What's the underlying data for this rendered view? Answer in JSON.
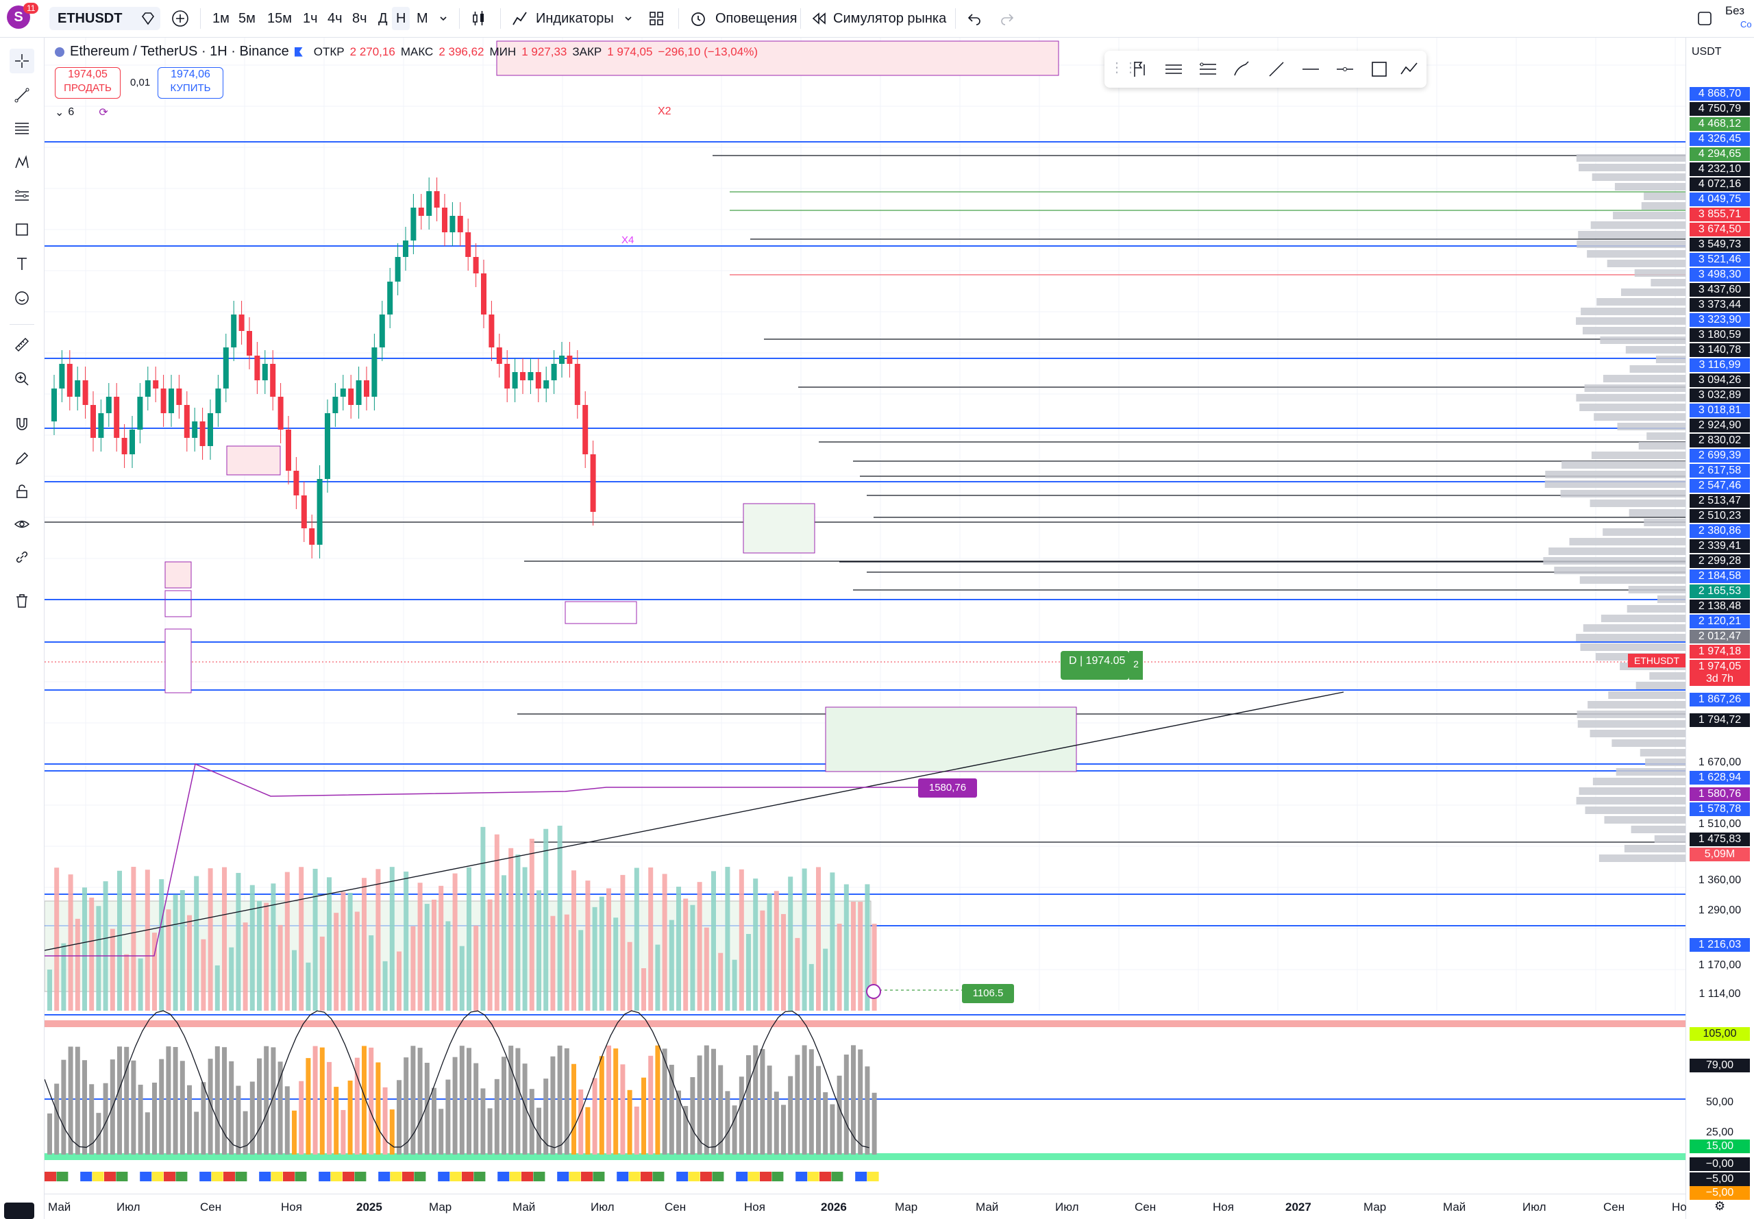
{
  "topbar": {
    "avatar_letter": "S",
    "notif_count": "11",
    "symbol": "ETHUSDT",
    "intervals": [
      "1м",
      "5м",
      "15м",
      "1ч",
      "4ч",
      "8ч",
      "Д",
      "Н",
      "М"
    ],
    "indicators_label": "Индикаторы",
    "alerts_label": "Оповещения",
    "replay_label": "Симулятор рынка",
    "layout_name": "Без",
    "layout_sub": "Со"
  },
  "legend": {
    "title": "Ethereum / TetherUS · 1H · Binance",
    "open_label": "ОТКР",
    "open": "2 270,16",
    "high_label": "МАКС",
    "high": "2 396,62",
    "low_label": "МИН",
    "low": "1 927,33",
    "close_label": "ЗАКР",
    "close": "1 974,05",
    "change": "−296,10 (−13,04%)"
  },
  "trade": {
    "sell_price": "1974,05",
    "sell_label": "ПРОДАТЬ",
    "spread": "0,01",
    "buy_price": "1974,06",
    "buy_label": "КУПИТЬ",
    "indicators_count": "6"
  },
  "currency": "USDT",
  "chart_labels": {
    "x2": "X2",
    "x4": "X4",
    "order_label": "D | 1974.05",
    "order_count": "2",
    "poc_label": "1580,76",
    "target_label": "1106.5"
  },
  "price_labels": [
    {
      "text": "4 868,70",
      "bg": "#2962ff"
    },
    {
      "text": "4 750,79",
      "bg": "#131722"
    },
    {
      "text": "4 468,12",
      "bg": "#43a047"
    },
    {
      "text": "4 326,45",
      "bg": "#2962ff"
    },
    {
      "text": "4 294,65",
      "bg": "#43a047"
    },
    {
      "text": "4 232,10",
      "bg": "#131722"
    },
    {
      "text": "4 072,16",
      "bg": "#131722"
    },
    {
      "text": "4 049,75",
      "bg": "#2962ff"
    },
    {
      "text": "3 855,71",
      "bg": "#f23645"
    },
    {
      "text": "3 674,50",
      "bg": "#f23645"
    },
    {
      "text": "3 549,73",
      "bg": "#131722"
    },
    {
      "text": "3 521,46",
      "bg": "#2962ff"
    },
    {
      "text": "3 498,30",
      "bg": "#2962ff"
    },
    {
      "text": "3 437,60",
      "bg": "#131722"
    },
    {
      "text": "3 373,44",
      "bg": "#131722"
    },
    {
      "text": "3 323,90",
      "bg": "#2962ff"
    },
    {
      "text": "3 180,59",
      "bg": "#131722"
    },
    {
      "text": "3 140,78",
      "bg": "#131722"
    },
    {
      "text": "3 116,99",
      "bg": "#2962ff"
    },
    {
      "text": "3 094,26",
      "bg": "#131722"
    },
    {
      "text": "3 032,89",
      "bg": "#131722"
    },
    {
      "text": "3 018,81",
      "bg": "#2962ff"
    },
    {
      "text": "2 924,90",
      "bg": "#131722"
    },
    {
      "text": "2 830,02",
      "bg": "#131722"
    },
    {
      "text": "2 699,39",
      "bg": "#2962ff"
    },
    {
      "text": "2 617,58",
      "bg": "#2962ff"
    },
    {
      "text": "2 547,46",
      "bg": "#2962ff"
    },
    {
      "text": "2 513,47",
      "bg": "#131722"
    },
    {
      "text": "2 510,23",
      "bg": "#131722"
    },
    {
      "text": "2 380,86",
      "bg": "#2962ff"
    },
    {
      "text": "2 339,41",
      "bg": "#131722"
    },
    {
      "text": "2 299,28",
      "bg": "#131722"
    },
    {
      "text": "2 184,58",
      "bg": "#2962ff"
    },
    {
      "text": "2 165,53",
      "bg": "#089981"
    },
    {
      "text": "2 138,48",
      "bg": "#131722"
    },
    {
      "text": "2 120,21",
      "bg": "#2962ff"
    },
    {
      "text": "2 012,47",
      "bg": "#787b86"
    },
    {
      "text": "1 974,18",
      "bg": "#f23645"
    },
    {
      "text": "1 974,05",
      "bg": "#f23645"
    },
    {
      "text": "3d 7h",
      "bg": "#f23645"
    },
    {
      "text": "1 867,26",
      "bg": "#2962ff"
    },
    {
      "text": "1 794,72",
      "bg": "#131722"
    },
    {
      "text": "1 670,00",
      "bg": "plain"
    },
    {
      "text": "1 628,94",
      "bg": "#2962ff"
    },
    {
      "text": "1 580,76",
      "bg": "#9c27b0"
    },
    {
      "text": "1 578,78",
      "bg": "#2962ff"
    },
    {
      "text": "1 510,00",
      "bg": "plain"
    },
    {
      "text": "1 475,83",
      "bg": "#131722"
    },
    {
      "text": "5,09M",
      "bg": "#f7525f"
    },
    {
      "text": "1 360,00",
      "bg": "plain"
    },
    {
      "text": "1 290,00",
      "bg": "plain"
    },
    {
      "text": "1 216,03",
      "bg": "#2962ff"
    },
    {
      "text": "1 170,00",
      "bg": "plain"
    },
    {
      "text": "1 114,00",
      "bg": "plain"
    },
    {
      "text": "105,00",
      "bg": "#c6ff00"
    },
    {
      "text": "79,00",
      "bg": "#131722"
    },
    {
      "text": "50,00",
      "bg": "plain"
    },
    {
      "text": "25,00",
      "bg": "plain"
    },
    {
      "text": "15,00",
      "bg": "#00c853"
    },
    {
      "text": "−0,00",
      "bg": "#131722"
    },
    {
      "text": "−5,00",
      "bg": "#131722"
    },
    {
      "text": "−5,00",
      "bg": "#ff9800"
    }
  ],
  "symbol_tag": "ETHUSDT",
  "time_labels": [
    "Май",
    "Июл",
    "Сен",
    "Ноя",
    "2025",
    "Мар",
    "Май",
    "Июл",
    "Сен",
    "Ноя",
    "2026",
    "Мар",
    "Май",
    "Июл",
    "Сен",
    "Ноя",
    "2027",
    "Мар",
    "Май",
    "Июл",
    "Сен",
    "Но"
  ]
}
